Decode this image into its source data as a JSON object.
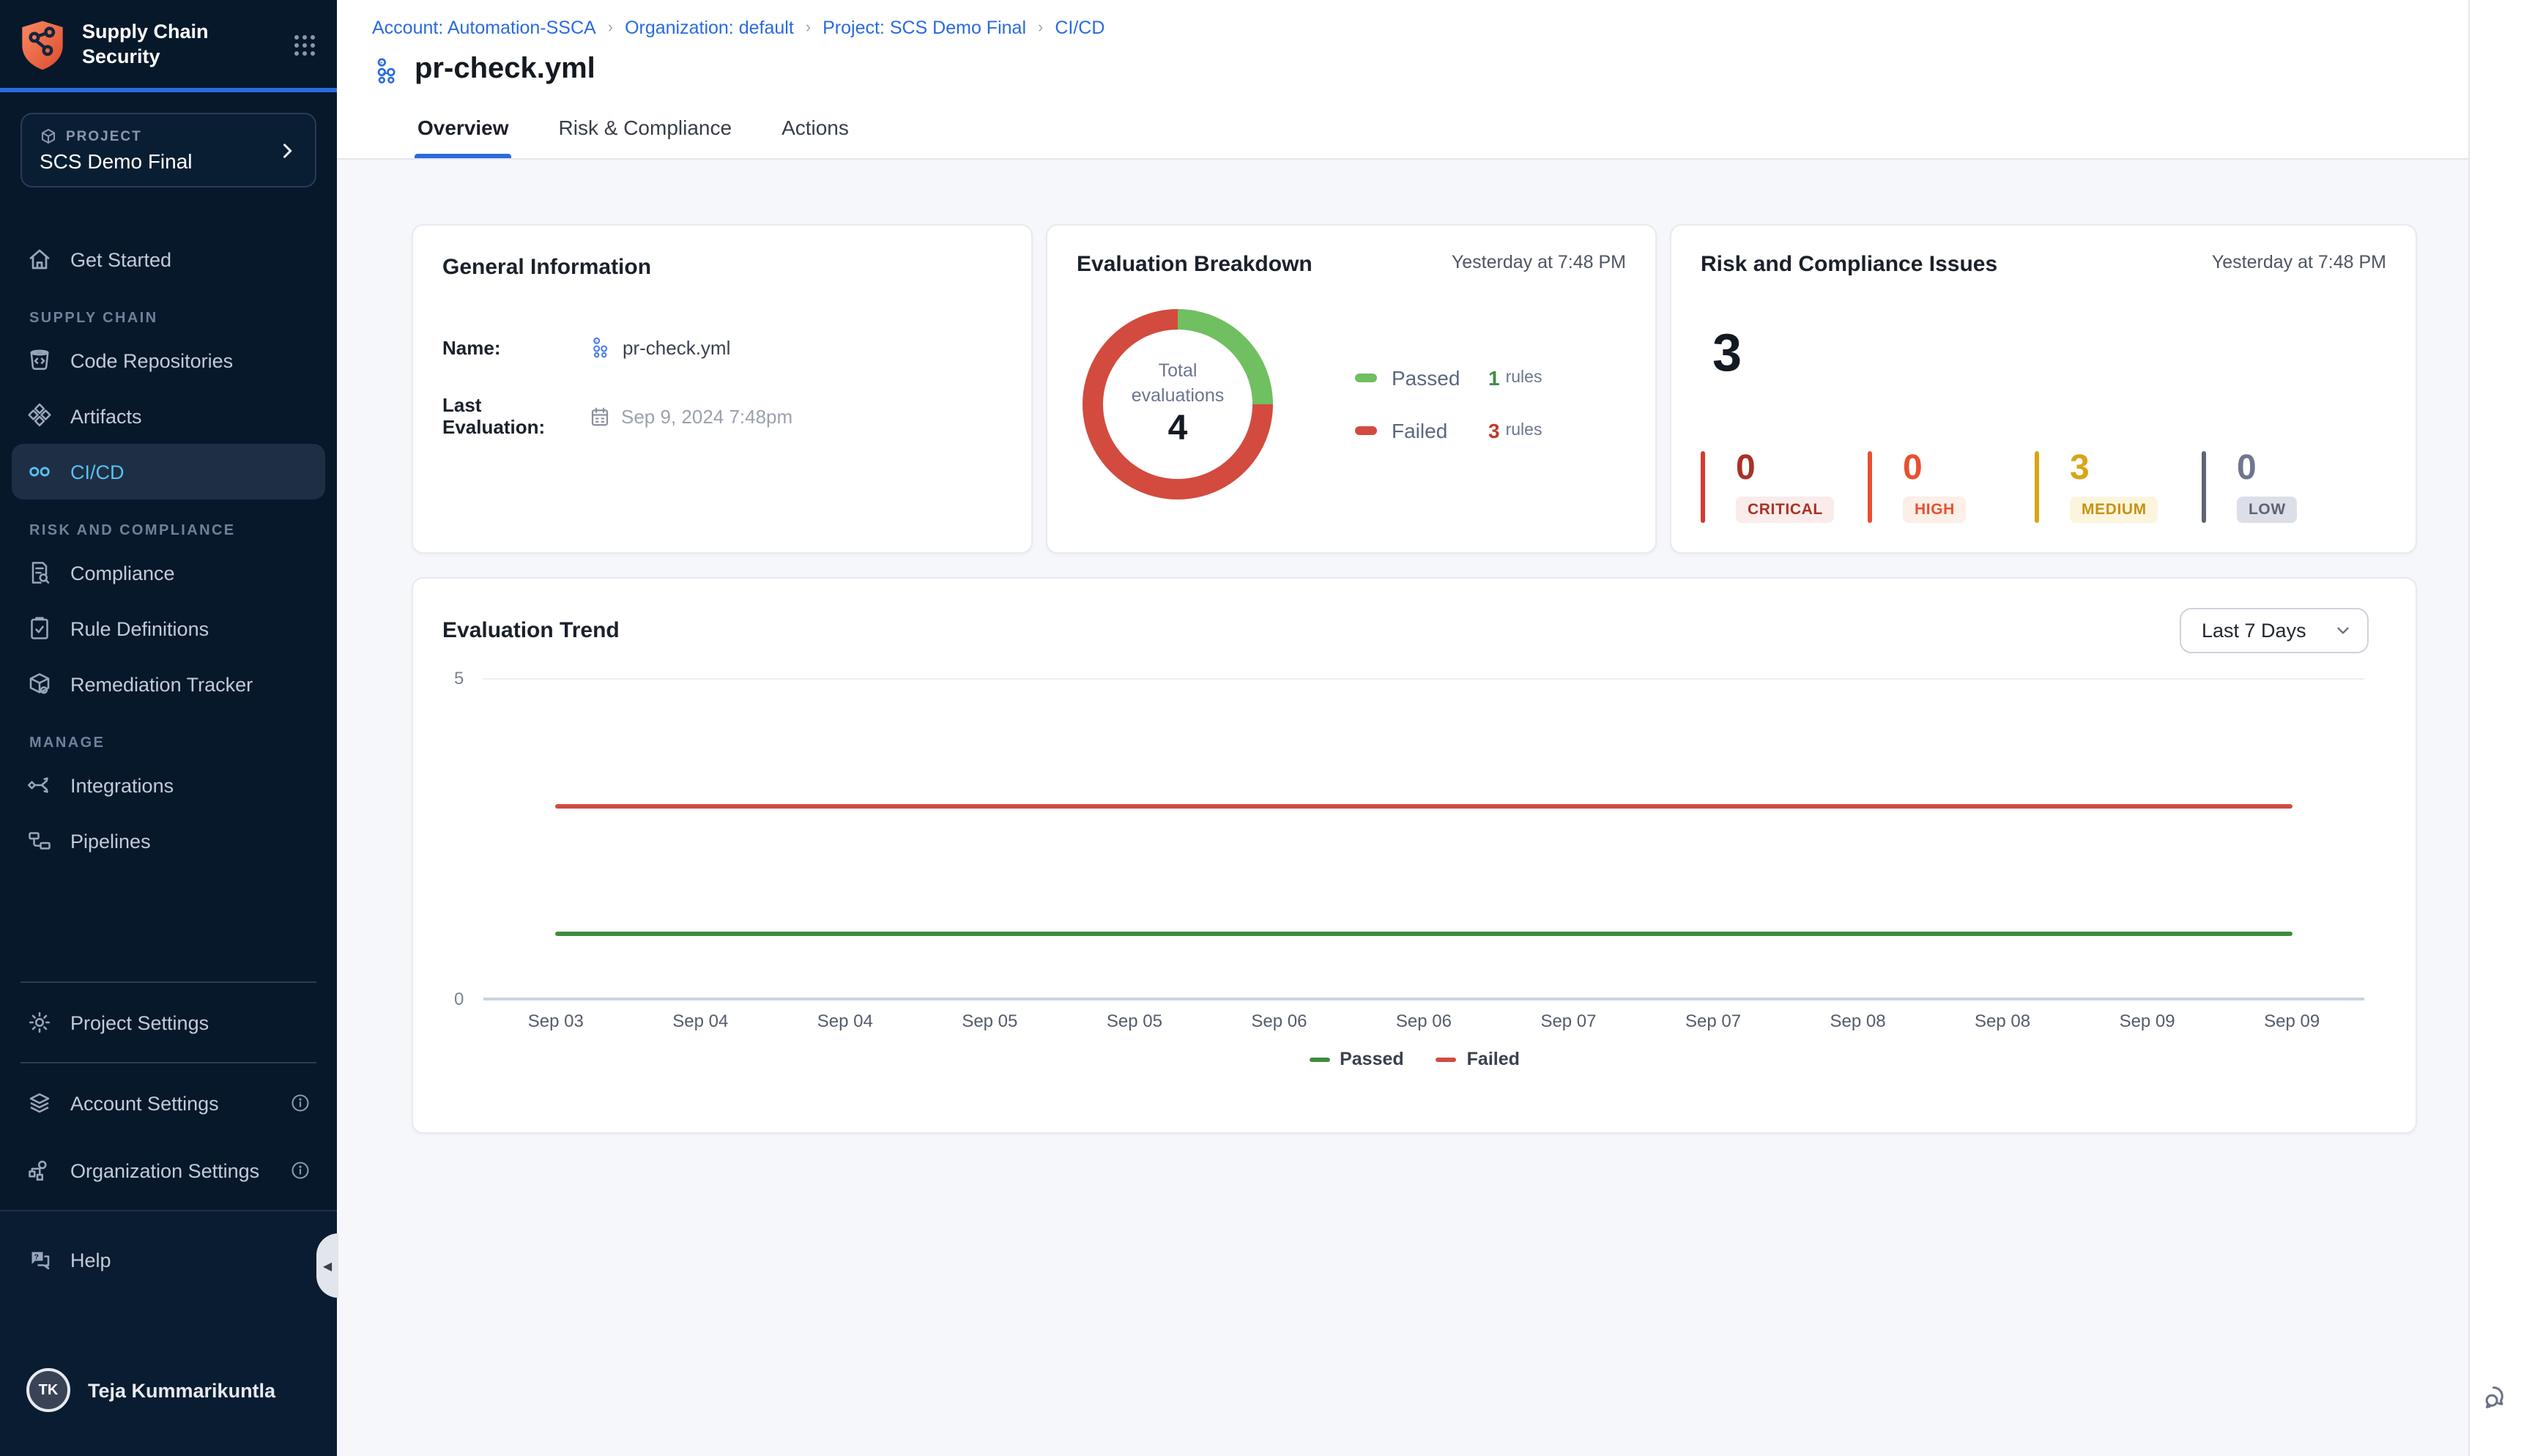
{
  "colors": {
    "accent_blue": "#2A6AE0",
    "sidebar_bg": "#07182B",
    "active_nav_text": "#58C1F0",
    "passed_green": "#70BF60",
    "failed_red": "#D24B3E",
    "trend_passed_green": "#3F8C3E",
    "trend_failed_red": "#D24B3E",
    "logo_orange": "#E85C3A"
  },
  "sidebar": {
    "product_line1": "Supply Chain",
    "product_line2": "Security",
    "project_label": "PROJECT",
    "project_name": "SCS Demo Final",
    "nav": {
      "get_started": "Get Started",
      "supply_chain_section": "SUPPLY CHAIN",
      "code_repositories": "Code Repositories",
      "artifacts": "Artifacts",
      "cicd": "CI/CD",
      "risk_compliance_section": "RISK AND COMPLIANCE",
      "compliance": "Compliance",
      "rule_definitions": "Rule Definitions",
      "remediation_tracker": "Remediation Tracker",
      "manage_section": "MANAGE",
      "integrations": "Integrations",
      "pipelines": "Pipelines",
      "project_settings": "Project Settings",
      "account_settings": "Account Settings",
      "organization_settings": "Organization Settings",
      "help": "Help"
    },
    "user": {
      "initials": "TK",
      "name": "Teja Kummarikuntla"
    }
  },
  "header": {
    "breadcrumb": [
      "Account: Automation-SSCA",
      "Organization: default",
      "Project: SCS Demo Final",
      "CI/CD"
    ],
    "page_title": "pr-check.yml",
    "tabs": [
      "Overview",
      "Risk & Compliance",
      "Actions"
    ]
  },
  "general_info": {
    "title": "General Information",
    "name_label": "Name:",
    "name_value": "pr-check.yml",
    "last_eval_label": "Last Evaluation:",
    "last_eval_value": "Sep 9, 2024 7:48pm"
  },
  "evaluation_breakdown": {
    "title": "Evaluation Breakdown",
    "timestamp": "Yesterday at 7:48 PM",
    "center_label": "Total evaluations",
    "center_value": "4",
    "legend": [
      {
        "label": "Passed",
        "count": "1",
        "suffix": "rules"
      },
      {
        "label": "Failed",
        "count": "3",
        "suffix": "rules"
      }
    ]
  },
  "risk_issues": {
    "title": "Risk and Compliance Issues",
    "timestamp": "Yesterday at 7:48 PM",
    "total": "3",
    "severities": [
      {
        "label": "CRITICAL",
        "count": "0",
        "number_color": "#A93226",
        "bar_color": "#D63B2F",
        "badge_bg": "#F9ECEA",
        "badge_text": "#A93226"
      },
      {
        "label": "HIGH",
        "count": "0",
        "number_color": "#E8502F",
        "bar_color": "#E8502F",
        "badge_bg": "#FBEFE7",
        "badge_text": "#E8502F"
      },
      {
        "label": "MEDIUM",
        "count": "3",
        "number_color": "#D9A514",
        "bar_color": "#D9A514",
        "badge_bg": "#FCF5DE",
        "badge_text": "#C79212"
      },
      {
        "label": "LOW",
        "count": "0",
        "number_color": "#6E7690",
        "bar_color": "#606473",
        "badge_bg": "#DDDFE8",
        "badge_text": "#5E6372"
      }
    ]
  },
  "trend": {
    "title": "Evaluation Trend",
    "range_selector": "Last 7 Days",
    "yticks": {
      "max": "5",
      "min": "0"
    }
  },
  "chart_data": [
    {
      "type": "pie",
      "subtype": "donut",
      "title": "Evaluation Breakdown",
      "labels": [
        "Passed",
        "Failed"
      ],
      "values": [
        1,
        3
      ],
      "colors": [
        "#70BF60",
        "#D24B3E"
      ],
      "center_label": "Total evaluations",
      "center_value": 4,
      "start_angle": "top",
      "direction": "clockwise"
    },
    {
      "type": "line",
      "title": "Evaluation Trend",
      "x": [
        "Sep 03",
        "Sep 04",
        "Sep 04",
        "Sep 05",
        "Sep 05",
        "Sep 06",
        "Sep 06",
        "Sep 07",
        "Sep 07",
        "Sep 08",
        "Sep 08",
        "Sep 09",
        "Sep 09"
      ],
      "series": [
        {
          "name": "Passed",
          "color": "#3F8C3E",
          "values": [
            1,
            1,
            1,
            1,
            1,
            1,
            1,
            1,
            1,
            1,
            1,
            1,
            1
          ]
        },
        {
          "name": "Failed",
          "color": "#D24B3E",
          "values": [
            3,
            3,
            3,
            3,
            3,
            3,
            3,
            3,
            3,
            3,
            3,
            3,
            3
          ]
        }
      ],
      "ylim": [
        0,
        5
      ],
      "yticks": [
        0,
        5
      ],
      "grid": "top gridline only",
      "legend_position": "bottom"
    }
  ]
}
